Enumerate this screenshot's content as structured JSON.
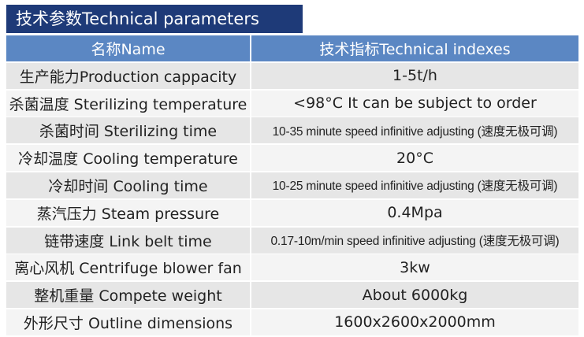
{
  "title": "技术参数Technical parameters",
  "header": {
    "name": "名称Name",
    "value": "技术指标Technical indexes"
  },
  "rows": [
    {
      "name": "生产能力Production cappacity",
      "value": "1-5t/h"
    },
    {
      "name": "杀菌温度 Sterilizing temperature",
      "value": "<98°C It can be subject to order"
    },
    {
      "name": "杀菌时间 Sterilizing time",
      "value": "10-35 minute speed infinitive adjusting (速度无极可调)"
    },
    {
      "name": "冷却温度 Cooling temperature",
      "value": "20°C"
    },
    {
      "name": "冷却时间 Cooling time",
      "value": "10-25 minute speed infinitive adjusting (速度无极可调)"
    },
    {
      "name": "蒸汽压力 Steam pressure",
      "value": "0.4Mpa"
    },
    {
      "name": "链带速度 Link belt time",
      "value": "0.17-10m/min speed infinitive adjusting (速度无极可调)"
    },
    {
      "name": "离心风机 Centrifuge blower fan",
      "value": "3kw"
    },
    {
      "name": "整机重量 Compete weight",
      "value": "About 6000kg"
    },
    {
      "name": "外形尺寸 Outline dimensions",
      "value": "1600x2600x2000mm"
    }
  ]
}
